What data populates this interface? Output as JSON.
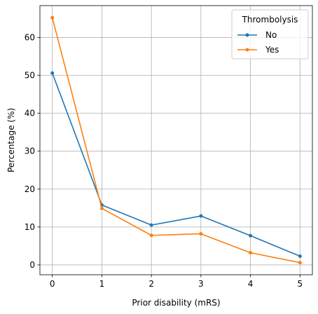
{
  "chart_data": {
    "type": "line",
    "xlabel": "Prior disability (mRS)",
    "ylabel": "Percentage (%)",
    "x": [
      0,
      1,
      2,
      3,
      4,
      5
    ],
    "xlim": [
      -0.25,
      5.25
    ],
    "ylim": [
      -2.6,
      68.4
    ],
    "xticks": [
      0,
      1,
      2,
      3,
      4,
      5
    ],
    "yticks": [
      0,
      10,
      20,
      30,
      40,
      50,
      60
    ],
    "grid": true,
    "legend": {
      "title": "Thrombolysis",
      "placement": "top-right"
    },
    "series": [
      {
        "name": "No",
        "color": "#1f77b4",
        "values": [
          50.6,
          15.8,
          10.5,
          12.9,
          7.7,
          2.3
        ]
      },
      {
        "name": "Yes",
        "color": "#ff7f0e",
        "values": [
          65.2,
          14.9,
          7.8,
          8.2,
          3.2,
          0.6
        ]
      }
    ]
  }
}
